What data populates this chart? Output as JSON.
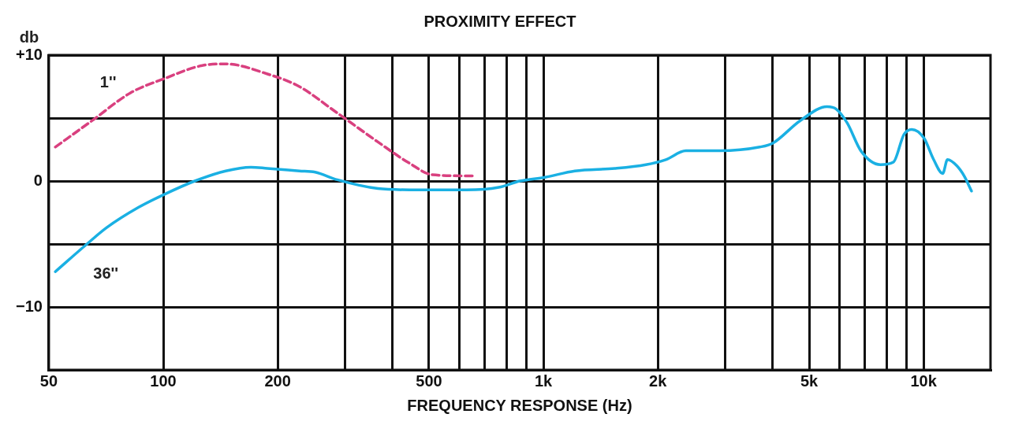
{
  "chart_data": {
    "type": "line",
    "title": "PROXIMITY EFFECT",
    "xlabel": "FREQUENCY RESPONSE (Hz)",
    "ylabel": "db",
    "log": "x",
    "grid": true,
    "legend": false,
    "marker": "none",
    "xlim": [
      50,
      15000
    ],
    "ylim": [
      -15,
      10
    ],
    "xticks": [
      50,
      100,
      200,
      {
        "value": 300,
        "label": null
      },
      {
        "value": 400,
        "label": null
      },
      500,
      {
        "value": 600,
        "label": null
      },
      {
        "value": 700,
        "label": null
      },
      {
        "value": 800,
        "label": null
      },
      {
        "value": 900,
        "label": null
      },
      {
        "value": 1000,
        "label": "1k"
      },
      {
        "value": 2000,
        "label": "2k"
      },
      {
        "value": 3000,
        "label": null
      },
      {
        "value": 4000,
        "label": null
      },
      {
        "value": 5000,
        "label": "5k"
      },
      {
        "value": 6000,
        "label": null
      },
      {
        "value": 7000,
        "label": null
      },
      {
        "value": 8000,
        "label": null
      },
      {
        "value": 9000,
        "label": null
      },
      {
        "value": 10000,
        "label": "10k"
      }
    ],
    "yticks": [
      {
        "value": 10,
        "label": "+10"
      },
      {
        "value": 5,
        "label": null
      },
      0,
      {
        "value": -5,
        "label": null
      },
      {
        "value": -10,
        "label": "−10"
      }
    ],
    "series": [
      {
        "name": "1''",
        "color": "#d9407f",
        "line_style": "dashed",
        "x": [
          52,
          65,
          82,
          100,
          128,
          146,
          188,
          228,
          284,
          367,
          445,
          510,
          654
        ],
        "values": [
          2.7,
          4.8,
          7.0,
          8.1,
          9.2,
          9.3,
          8.5,
          7.5,
          5.5,
          3.1,
          1.4,
          0.5,
          0.4
        ]
      },
      {
        "name": "36''",
        "color": "#1ab0e3",
        "line_style": "solid",
        "x": [
          52,
          63,
          71,
          86,
          100,
          121,
          146,
          170,
          188,
          228,
          251,
          287,
          367,
          445,
          628,
          763,
          867,
          1010,
          1210,
          1540,
          1860,
          2100,
          2370,
          2910,
          3710,
          4010,
          4740,
          5570,
          5900,
          6300,
          6840,
          7700,
          8330,
          8880,
          9310,
          10030,
          10630,
          11230,
          11560,
          12240,
          12790,
          13370
        ],
        "values": [
          -7.2,
          -5.0,
          -3.7,
          -2.1,
          -1.1,
          0,
          0.8,
          1.1,
          1.0,
          0.8,
          0.7,
          0.1,
          -0.6,
          -0.7,
          -0.7,
          -0.5,
          0,
          0.3,
          0.8,
          1.0,
          1.3,
          1.7,
          2.4,
          2.4,
          2.7,
          3.0,
          4.8,
          5.9,
          5.7,
          4.6,
          2.4,
          1.3,
          1.5,
          3.7,
          4.1,
          3.4,
          1.7,
          0.6,
          1.7,
          1.2,
          0.4,
          -0.8
        ]
      }
    ]
  }
}
